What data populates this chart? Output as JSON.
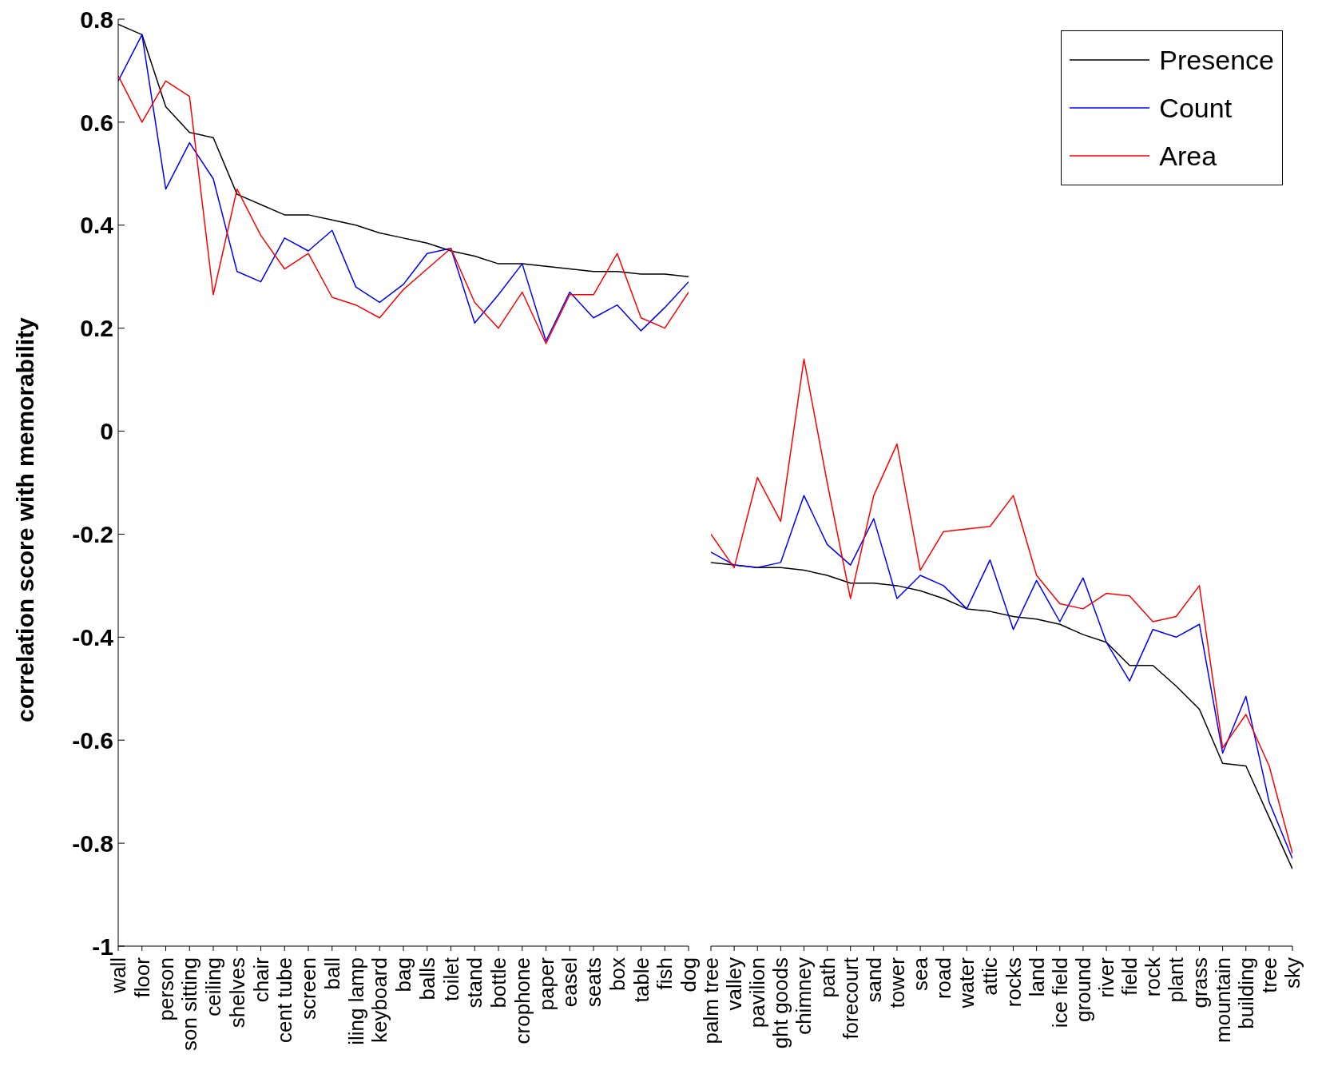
{
  "chart_data": [
    {
      "type": "line",
      "ylabel": "correlation score with memorability",
      "ylim": [
        -1,
        0.8
      ],
      "yticks": [
        -1,
        -0.8,
        -0.6,
        -0.4,
        -0.2,
        0,
        0.2,
        0.4,
        0.6,
        0.8
      ],
      "marker": "none",
      "legend": false,
      "categories": [
        "wall",
        "floor",
        "person",
        "son sitting",
        "ceiling",
        "shelves",
        "chair",
        "cent tube",
        "screen",
        "ball",
        "iling lamp",
        "keyboard",
        "bag",
        "balls",
        "toilet",
        "stand",
        "bottle",
        "crophone",
        "paper",
        "easel",
        "seats",
        "box",
        "table",
        "fish",
        "dog"
      ],
      "series": [
        {
          "color": "#000000",
          "values": [
            0.79,
            0.77,
            0.63,
            0.58,
            0.57,
            0.46,
            0.44,
            0.42,
            0.42,
            0.41,
            0.4,
            0.385,
            0.375,
            0.365,
            0.35,
            0.34,
            0.325,
            0.325,
            0.32,
            0.315,
            0.31,
            0.31,
            0.305,
            0.305,
            0.3
          ]
        },
        {
          "color": "#0000ff",
          "values": [
            0.68,
            0.77,
            0.47,
            0.56,
            0.49,
            0.31,
            0.29,
            0.375,
            0.35,
            0.39,
            0.28,
            0.25,
            0.285,
            0.345,
            0.355,
            0.21,
            0.265,
            0.325,
            0.175,
            0.27,
            0.22,
            0.245,
            0.195,
            0.24,
            0.29
          ]
        },
        {
          "color": "#ff0000",
          "values": [
            0.69,
            0.6,
            0.68,
            0.65,
            0.265,
            0.47,
            0.38,
            0.315,
            0.345,
            0.26,
            0.245,
            0.22,
            0.275,
            0.315,
            0.355,
            0.25,
            0.2,
            0.27,
            0.17,
            0.265,
            0.265,
            0.345,
            0.22,
            0.2,
            0.27
          ]
        }
      ]
    },
    {
      "type": "line",
      "ylim": [
        -1,
        0.8
      ],
      "yticks": [
        -1,
        -0.8,
        -0.6,
        -0.4,
        -0.2,
        0,
        0.2,
        0.4,
        0.6,
        0.8
      ],
      "marker": "none",
      "legend": "top right",
      "tick_labels": "x",
      "categories": [
        "palm tree",
        "valley",
        "pavilion",
        "ght goods",
        "chimney",
        "path",
        "forecourt",
        "sand",
        "tower",
        "sea",
        "road",
        "water",
        "attic",
        "rocks",
        "land",
        "ice field",
        "ground",
        "river",
        "field",
        "rock",
        "plant",
        "grass",
        "mountain",
        "building",
        "tree",
        "sky"
      ],
      "series": [
        {
          "name": "Presence",
          "color": "#000000",
          "values": [
            -0.255,
            -0.26,
            -0.265,
            -0.265,
            -0.27,
            -0.28,
            -0.295,
            -0.295,
            -0.3,
            -0.31,
            -0.325,
            -0.345,
            -0.35,
            -0.36,
            -0.365,
            -0.375,
            -0.395,
            -0.41,
            -0.455,
            -0.455,
            -0.495,
            -0.54,
            -0.645,
            -0.65,
            -0.75,
            -0.85
          ]
        },
        {
          "name": "Count",
          "color": "#0000ff",
          "values": [
            -0.235,
            -0.26,
            -0.265,
            -0.255,
            -0.125,
            -0.22,
            -0.26,
            -0.17,
            -0.325,
            -0.28,
            -0.3,
            -0.345,
            -0.25,
            -0.385,
            -0.29,
            -0.37,
            -0.285,
            -0.41,
            -0.485,
            -0.385,
            -0.4,
            -0.375,
            -0.625,
            -0.515,
            -0.72,
            -0.83
          ]
        },
        {
          "name": "Area",
          "color": "#ff0000",
          "values": [
            -0.2,
            -0.265,
            -0.09,
            -0.175,
            0.14,
            -0.1,
            -0.325,
            -0.125,
            -0.025,
            -0.27,
            -0.195,
            -0.19,
            -0.185,
            -0.125,
            -0.28,
            -0.335,
            -0.345,
            -0.315,
            -0.32,
            -0.37,
            -0.36,
            -0.3,
            -0.615,
            -0.55,
            -0.65,
            -0.82
          ]
        }
      ]
    }
  ]
}
